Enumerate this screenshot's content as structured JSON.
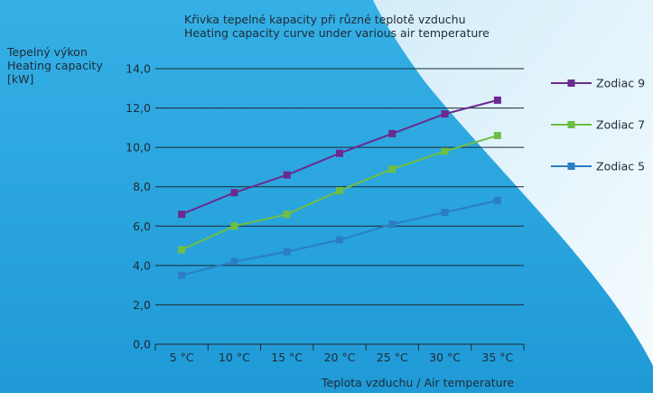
{
  "colors": {
    "bg_blue": "#2aa6dd",
    "bg_light": "#dff1fa",
    "series": [
      "#6a2a8f",
      "#6ebe44",
      "#2b7fc1"
    ]
  },
  "title_lines": [
    "Křivka tepelné kapacity při různé teplotě vzduchu",
    "Heating capacity curve under various air temperature"
  ],
  "ylabel_lines": [
    "Tepelný výkon",
    "Heating capacity",
    "[kW]"
  ],
  "xlabel": "Teplota vzduchu / Air temperature",
  "chart_data": {
    "type": "line",
    "title": "Křivka tepelné kapacity při různé teplotě vzduchu / Heating capacity curve under various air temperature",
    "xlabel": "Teplota vzduchu / Air temperature",
    "ylabel": "Tepelný výkon / Heating capacity [kW]",
    "categories": [
      "5 °C",
      "10 °C",
      "15 °C",
      "20 °C",
      "25 °C",
      "30 °C",
      "35 °C"
    ],
    "ylim": [
      0,
      14
    ],
    "yticks": [
      "0,0",
      "2,0",
      "4,0",
      "6,0",
      "8,0",
      "10,0",
      "12,0",
      "14,0"
    ],
    "grid": true,
    "legend": "right",
    "series": [
      {
        "name": "Zodiac 9",
        "values": [
          6.6,
          7.7,
          8.6,
          9.7,
          10.7,
          11.7,
          12.4
        ]
      },
      {
        "name": "Zodiac 7",
        "values": [
          4.8,
          6.0,
          6.6,
          7.8,
          8.9,
          9.8,
          10.6
        ]
      },
      {
        "name": "Zodiac 5",
        "values": [
          3.5,
          4.2,
          4.7,
          5.3,
          6.1,
          6.7,
          7.3
        ]
      }
    ]
  }
}
